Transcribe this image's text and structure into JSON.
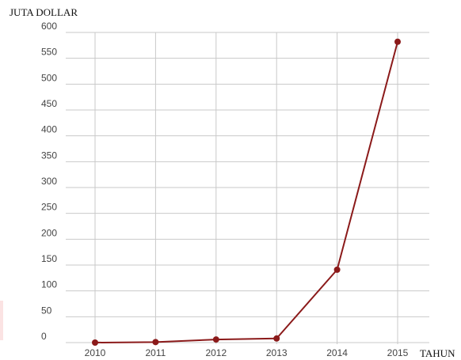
{
  "chart_data": {
    "type": "line",
    "ylabel": "JUTA DOLLAR",
    "xlabel": "TAHUN",
    "categories": [
      "2010",
      "2011",
      "2012",
      "2013",
      "2014",
      "2015"
    ],
    "values": [
      0,
      1,
      6,
      8,
      141,
      582
    ],
    "ylim": [
      0,
      600
    ],
    "yticks": [
      0,
      50,
      100,
      150,
      200,
      250,
      300,
      350,
      400,
      450,
      500,
      550,
      600
    ],
    "grid": true,
    "line_color": "#8b1a1a",
    "grid_color": "#c9c9c9"
  }
}
